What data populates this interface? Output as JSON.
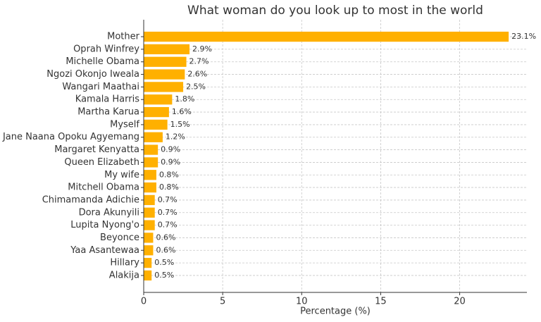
{
  "chart_data": {
    "type": "barh",
    "title": "What woman do you look up to most in the world",
    "x_label": "Percentage (%)",
    "categories": [
      "Mother",
      "Oprah Winfrey",
      "Michelle Obama",
      "Ngozi Okonjo Iweala",
      "Wangari Maathai",
      "Kamala Harris",
      "Martha Karua",
      "Myself",
      "Jane Naana Opoku Agyemang",
      "Margaret Kenyatta",
      "Queen Elizabeth",
      "My wife",
      "Mitchell Obama",
      "Chimamanda Adichie",
      "Dora Akunyili",
      "Lupita Nyong'o",
      "Beyonce",
      "Yaa Asantewaa",
      "Hillary",
      "Alakija"
    ],
    "values": [
      23.1,
      2.9,
      2.7,
      2.6,
      2.5,
      1.8,
      1.6,
      1.5,
      1.2,
      0.9,
      0.9,
      0.8,
      0.8,
      0.7,
      0.7,
      0.7,
      0.6,
      0.6,
      0.5,
      0.5
    ],
    "value_labels": [
      "23.1%",
      "2.9%",
      "2.7%",
      "2.6%",
      "2.5%",
      "1.8%",
      "1.6%",
      "1.5%",
      "1.2%",
      "0.9%",
      "0.9%",
      "0.8%",
      "0.8%",
      "0.7%",
      "0.7%",
      "0.7%",
      "0.6%",
      "0.6%",
      "0.5%",
      "0.5%"
    ],
    "color": "#ffb000",
    "xlim": [
      0,
      24.255
    ],
    "xticks": [
      0,
      5,
      10,
      15,
      20
    ],
    "grid": true
  }
}
